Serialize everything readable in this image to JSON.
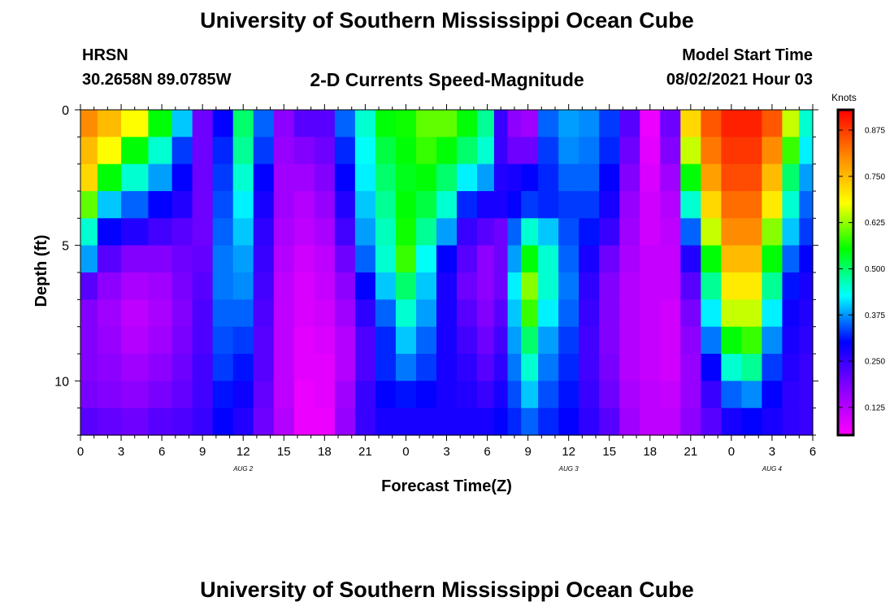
{
  "page": {
    "top_title": "University of Southern Mississippi Ocean Cube",
    "bottom_title": "University of Southern Mississippi Ocean Cube",
    "station": "HRSN",
    "coords": "30.2658N  89.0785W",
    "subtitle": "2-D Currents Speed-Magnitude",
    "model_start_label": "Model Start Time",
    "model_start_value": "08/02/2021 Hour 03"
  },
  "chart_data": {
    "type": "heatmap",
    "title": "2-D Currents Speed-Magnitude",
    "xlabel": "Forecast Time(Z)",
    "ylabel": "Depth (ft)",
    "colorbar_label": "Knots",
    "x_range_hours": [
      0,
      54
    ],
    "y_range_ft": [
      0,
      12
    ],
    "y_reversed": true,
    "grid": false,
    "xticks": [
      {
        "hour": 0,
        "label": "0"
      },
      {
        "hour": 3,
        "label": "3"
      },
      {
        "hour": 6,
        "label": "6"
      },
      {
        "hour": 9,
        "label": "9"
      },
      {
        "hour": 12,
        "label": "12"
      },
      {
        "hour": 15,
        "label": "15"
      },
      {
        "hour": 18,
        "label": "18"
      },
      {
        "hour": 21,
        "label": "21"
      },
      {
        "hour": 24,
        "label": "0"
      },
      {
        "hour": 27,
        "label": "3"
      },
      {
        "hour": 30,
        "label": "6"
      },
      {
        "hour": 33,
        "label": "9"
      },
      {
        "hour": 36,
        "label": "12"
      },
      {
        "hour": 39,
        "label": "15"
      },
      {
        "hour": 42,
        "label": "18"
      },
      {
        "hour": 45,
        "label": "21"
      },
      {
        "hour": 48,
        "label": "0"
      },
      {
        "hour": 51,
        "label": "3"
      },
      {
        "hour": 54,
        "label": "6"
      }
    ],
    "date_labels": [
      {
        "hour": 12,
        "label": "AUG 2"
      },
      {
        "hour": 36,
        "label": "AUG 3"
      },
      {
        "hour": 51,
        "label": "AUG 4"
      }
    ],
    "yticks": [
      {
        "depth": 0,
        "label": "0"
      },
      {
        "depth": 5,
        "label": "5"
      },
      {
        "depth": 10,
        "label": "10"
      }
    ],
    "colorbar": {
      "min": 0.05,
      "max": 0.93,
      "ticks": [
        "0.125",
        "0.250",
        "0.375",
        "0.500",
        "0.625",
        "0.750",
        "0.875"
      ],
      "tick_values": [
        0.125,
        0.25,
        0.375,
        0.5,
        0.625,
        0.75,
        0.875
      ],
      "colors": [
        "#ff00ff",
        "#8800ff",
        "#0000ff",
        "#00ffff",
        "#00ff00",
        "#ffff00",
        "#ff8800",
        "#ff0000"
      ]
    },
    "depth_levels_ft": [
      0.5,
      1.5,
      2.5,
      3.5,
      4.5,
      5.5,
      6.5,
      7.5,
      8.5,
      9.5,
      10.5,
      11.5
    ],
    "columns": [
      {
        "hour": 0.5,
        "values": [
          0.8,
          0.75,
          0.72,
          0.6,
          0.45,
          0.38,
          0.22,
          0.18,
          0.18,
          0.18,
          0.19,
          0.22
        ]
      },
      {
        "hour": 2,
        "values": [
          0.75,
          0.68,
          0.55,
          0.4,
          0.3,
          0.22,
          0.17,
          0.15,
          0.16,
          0.17,
          0.18,
          0.21
        ]
      },
      {
        "hour": 4,
        "values": [
          0.68,
          0.55,
          0.45,
          0.35,
          0.27,
          0.18,
          0.14,
          0.12,
          0.13,
          0.15,
          0.17,
          0.2
        ]
      },
      {
        "hour": 6,
        "values": [
          0.55,
          0.45,
          0.38,
          0.3,
          0.24,
          0.18,
          0.15,
          0.14,
          0.15,
          0.17,
          0.19,
          0.22
        ]
      },
      {
        "hour": 7.5,
        "values": [
          0.4,
          0.33,
          0.3,
          0.27,
          0.22,
          0.2,
          0.19,
          0.18,
          0.19,
          0.2,
          0.21,
          0.23
        ]
      },
      {
        "hour": 9,
        "values": [
          0.2,
          0.2,
          0.2,
          0.2,
          0.2,
          0.21,
          0.22,
          0.23,
          0.23,
          0.24,
          0.24,
          0.25
        ]
      },
      {
        "hour": 10.5,
        "values": [
          0.3,
          0.32,
          0.33,
          0.34,
          0.35,
          0.36,
          0.36,
          0.35,
          0.34,
          0.33,
          0.31,
          0.3
        ]
      },
      {
        "hour": 12,
        "values": [
          0.5,
          0.48,
          0.45,
          0.42,
          0.4,
          0.38,
          0.37,
          0.35,
          0.33,
          0.31,
          0.29,
          0.27
        ]
      },
      {
        "hour": 13.5,
        "values": [
          0.35,
          0.33,
          0.3,
          0.28,
          0.26,
          0.25,
          0.24,
          0.23,
          0.22,
          0.22,
          0.21,
          0.2
        ]
      },
      {
        "hour": 15,
        "values": [
          0.17,
          0.16,
          0.15,
          0.15,
          0.14,
          0.13,
          0.12,
          0.12,
          0.12,
          0.12,
          0.12,
          0.13
        ]
      },
      {
        "hour": 16.5,
        "values": [
          0.22,
          0.18,
          0.15,
          0.13,
          0.12,
          0.1,
          0.09,
          0.09,
          0.08,
          0.08,
          0.07,
          0.07
        ]
      },
      {
        "hour": 18,
        "values": [
          0.22,
          0.2,
          0.18,
          0.16,
          0.14,
          0.12,
          0.11,
          0.1,
          0.09,
          0.08,
          0.08,
          0.07
        ]
      },
      {
        "hour": 19.5,
        "values": [
          0.35,
          0.32,
          0.3,
          0.27,
          0.24,
          0.2,
          0.17,
          0.15,
          0.13,
          0.13,
          0.15,
          0.16
        ]
      },
      {
        "hour": 21,
        "values": [
          0.45,
          0.43,
          0.42,
          0.4,
          0.38,
          0.35,
          0.3,
          0.26,
          0.23,
          0.23,
          0.25,
          0.25
        ]
      },
      {
        "hour": 22.5,
        "values": [
          0.55,
          0.52,
          0.5,
          0.48,
          0.46,
          0.45,
          0.4,
          0.35,
          0.32,
          0.32,
          0.3,
          0.28
        ]
      },
      {
        "hour": 24,
        "values": [
          0.56,
          0.55,
          0.54,
          0.55,
          0.56,
          0.58,
          0.5,
          0.45,
          0.4,
          0.36,
          0.31,
          0.28
        ]
      },
      {
        "hour": 25.5,
        "values": [
          0.6,
          0.58,
          0.55,
          0.52,
          0.48,
          0.43,
          0.4,
          0.38,
          0.35,
          0.33,
          0.3,
          0.28
        ]
      },
      {
        "hour": 27,
        "values": [
          0.6,
          0.55,
          0.5,
          0.45,
          0.38,
          0.3,
          0.28,
          0.28,
          0.28,
          0.28,
          0.28,
          0.28
        ]
      },
      {
        "hour": 28.5,
        "values": [
          0.55,
          0.5,
          0.42,
          0.32,
          0.25,
          0.22,
          0.2,
          0.22,
          0.24,
          0.26,
          0.27,
          0.28
        ]
      },
      {
        "hour": 30,
        "values": [
          0.48,
          0.45,
          0.38,
          0.28,
          0.22,
          0.17,
          0.17,
          0.18,
          0.2,
          0.22,
          0.25,
          0.28
        ]
      },
      {
        "hour": 31,
        "values": [
          0.25,
          0.25,
          0.27,
          0.28,
          0.2,
          0.2,
          0.2,
          0.22,
          0.24,
          0.26,
          0.28,
          0.3
        ]
      },
      {
        "hour": 32,
        "values": [
          0.17,
          0.2,
          0.28,
          0.3,
          0.35,
          0.38,
          0.42,
          0.4,
          0.38,
          0.36,
          0.34,
          0.32
        ]
      },
      {
        "hour": 33,
        "values": [
          0.15,
          0.2,
          0.3,
          0.33,
          0.45,
          0.55,
          0.62,
          0.58,
          0.5,
          0.45,
          0.4,
          0.35
        ]
      },
      {
        "hour": 34.5,
        "values": [
          0.35,
          0.33,
          0.32,
          0.32,
          0.4,
          0.45,
          0.45,
          0.42,
          0.38,
          0.36,
          0.34,
          0.32
        ]
      },
      {
        "hour": 36,
        "values": [
          0.38,
          0.37,
          0.35,
          0.33,
          0.34,
          0.35,
          0.36,
          0.35,
          0.33,
          0.32,
          0.31,
          0.3
        ]
      },
      {
        "hour": 37.5,
        "values": [
          0.37,
          0.36,
          0.35,
          0.33,
          0.31,
          0.28,
          0.26,
          0.25,
          0.24,
          0.24,
          0.25,
          0.26
        ]
      },
      {
        "hour": 39,
        "values": [
          0.33,
          0.32,
          0.3,
          0.28,
          0.25,
          0.2,
          0.18,
          0.18,
          0.18,
          0.19,
          0.2,
          0.22
        ]
      },
      {
        "hour": 40.5,
        "values": [
          0.22,
          0.2,
          0.18,
          0.16,
          0.15,
          0.14,
          0.13,
          0.13,
          0.13,
          0.13,
          0.14,
          0.15
        ]
      },
      {
        "hour": 42,
        "values": [
          0.07,
          0.08,
          0.09,
          0.1,
          0.1,
          0.11,
          0.11,
          0.11,
          0.11,
          0.11,
          0.12,
          0.12
        ]
      },
      {
        "hour": 43.5,
        "values": [
          0.2,
          0.18,
          0.15,
          0.13,
          0.12,
          0.11,
          0.11,
          0.1,
          0.1,
          0.1,
          0.11,
          0.12
        ]
      },
      {
        "hour": 45,
        "values": [
          0.72,
          0.65,
          0.55,
          0.45,
          0.35,
          0.27,
          0.22,
          0.19,
          0.17,
          0.16,
          0.16,
          0.17
        ]
      },
      {
        "hour": 46.5,
        "values": [
          0.85,
          0.82,
          0.78,
          0.72,
          0.65,
          0.55,
          0.48,
          0.42,
          0.36,
          0.3,
          0.25,
          0.22
        ]
      },
      {
        "hour": 48,
        "values": [
          0.9,
          0.88,
          0.86,
          0.83,
          0.8,
          0.75,
          0.7,
          0.65,
          0.55,
          0.45,
          0.35,
          0.28
        ]
      },
      {
        "hour": 49.5,
        "values": [
          0.9,
          0.88,
          0.86,
          0.83,
          0.8,
          0.75,
          0.7,
          0.65,
          0.58,
          0.48,
          0.37,
          0.3
        ]
      },
      {
        "hour": 51,
        "values": [
          0.85,
          0.8,
          0.75,
          0.7,
          0.62,
          0.55,
          0.48,
          0.42,
          0.37,
          0.33,
          0.3,
          0.28
        ]
      },
      {
        "hour": 52.5,
        "values": [
          0.65,
          0.58,
          0.5,
          0.45,
          0.4,
          0.35,
          0.31,
          0.29,
          0.28,
          0.27,
          0.26,
          0.26
        ]
      },
      {
        "hour": 53.5,
        "values": [
          0.45,
          0.42,
          0.38,
          0.35,
          0.33,
          0.3,
          0.28,
          0.27,
          0.26,
          0.25,
          0.25,
          0.25
        ]
      }
    ]
  }
}
